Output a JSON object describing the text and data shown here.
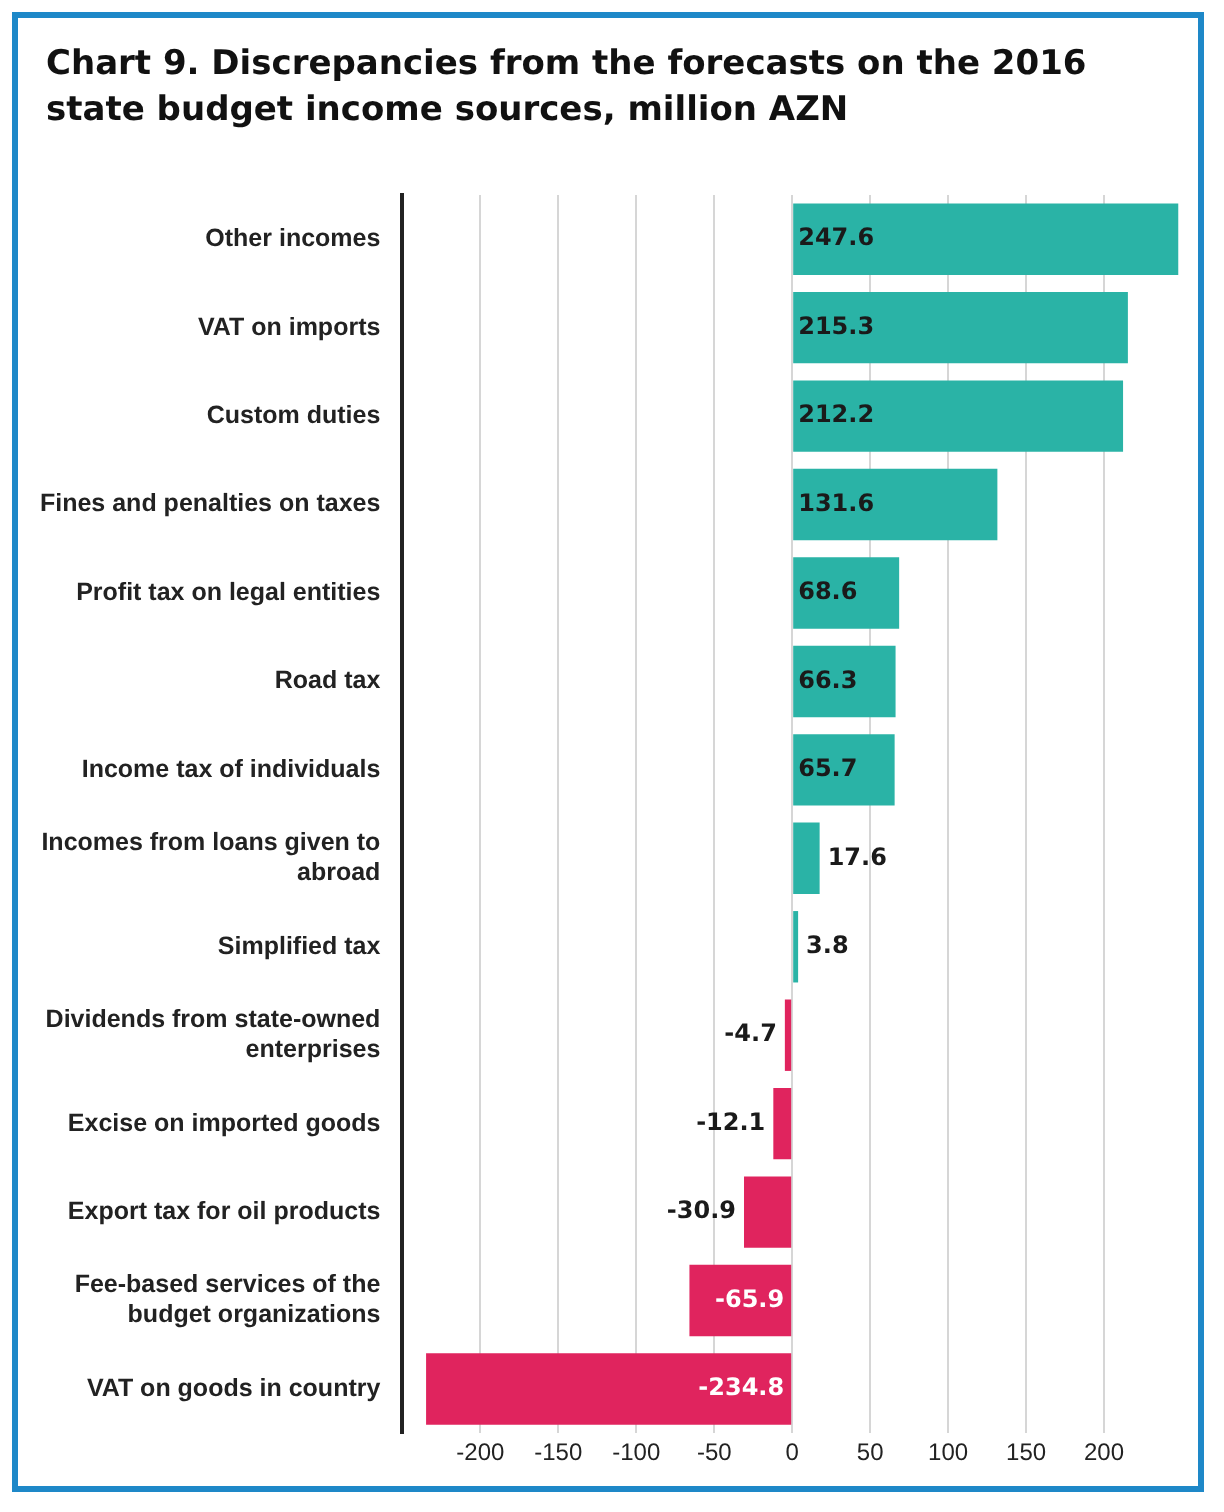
{
  "chart_data": {
    "type": "bar",
    "orientation": "horizontal",
    "title": "Chart 9. Discrepancies from the forecasts on the 2016 state budget income sources, million AZN",
    "categories": [
      "Other incomes",
      "VAT on imports",
      "Custom duties",
      "Fines and penalties on taxes",
      "Profit tax on legal entities",
      "Road tax",
      "Income tax of individuals",
      "Incomes from loans given to abroad",
      "Simplified tax",
      "Dividends from state-owned enterprises",
      "Excise on imported goods",
      "Export tax for oil products",
      "Fee-based services of the budget organizations",
      "VAT on goods in country"
    ],
    "values": [
      247.6,
      215.3,
      212.2,
      131.6,
      68.6,
      66.3,
      65.7,
      17.6,
      3.8,
      -4.7,
      -12.1,
      -30.9,
      -65.9,
      -234.8
    ],
    "colors": [
      "#2ab3a6",
      "#2ab3a6",
      "#2ab3a6",
      "#2ab3a6",
      "#2ab3a6",
      "#2ab3a6",
      "#2ab3a6",
      "#2ab3a6",
      "#2ab3a6",
      "#e0245e",
      "#e0245e",
      "#e0245e",
      "#e0245e",
      "#e0245e"
    ],
    "xlim": [
      -250,
      250
    ],
    "xticks": [
      -200,
      -150,
      -100,
      -50,
      0,
      50,
      100,
      150,
      200
    ],
    "grid": "x",
    "data_labels": true
  }
}
